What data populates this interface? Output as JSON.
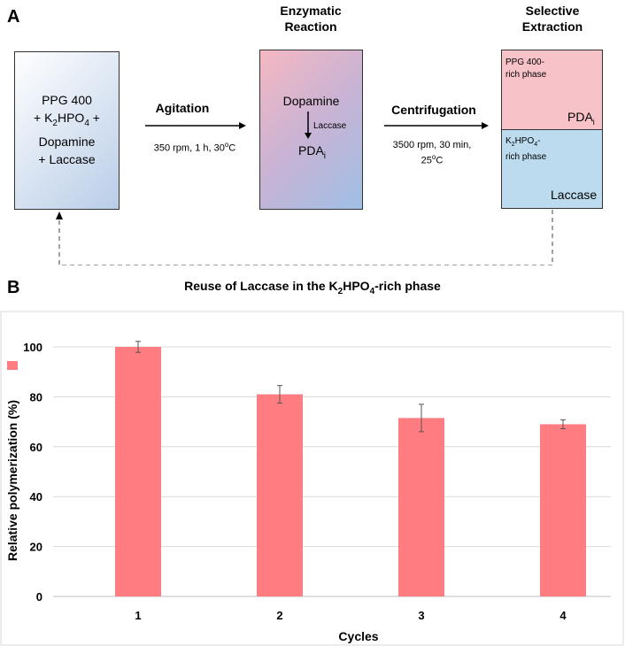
{
  "panel_a": {
    "label": "A",
    "box1": {
      "line1": "PPG 400",
      "line2_pre": "+ K",
      "line2_sub1": "2",
      "line2_mid": "HPO",
      "line2_sub2": "4",
      "line2_post": " +",
      "line3": "Dopamine",
      "line4": "+ Laccase"
    },
    "arrow1": {
      "label": "Agitation",
      "cond_pre": "350 rpm,  1 h, 30",
      "cond_sup": "o",
      "cond_post": "C"
    },
    "step2": {
      "header_line1": "Enzymatic",
      "header_line2": "Reaction",
      "substrate": "Dopamine",
      "enzyme": "Laccase",
      "product": "PDA",
      "product_sub": "i"
    },
    "arrow2": {
      "label": "Centrifugation",
      "cond_line1": "3500 rpm, 30 min,",
      "cond_line2_pre": "25",
      "cond_line2_sup": "o",
      "cond_line2_post": "C"
    },
    "step3": {
      "header_line1": "Selective",
      "header_line2": "Extraction",
      "top_phase_line1": "PPG 400-",
      "top_phase_line2": "rich phase",
      "top_product": "PDA",
      "top_product_sub": "i",
      "bottom_phase_pre": "K",
      "bottom_phase_sub1": "2",
      "bottom_phase_mid": "HPO",
      "bottom_phase_sub2": "4",
      "bottom_phase_post": "-",
      "bottom_phase_line2": "rich phase",
      "bottom_enzyme": "Laccase"
    },
    "reuse": {
      "pre": "Reuse of Laccase in the K",
      "sub1": "2",
      "mid": "HPO",
      "sub2": "4",
      "post": "-rich phase"
    }
  },
  "panel_b": {
    "label": "B"
  },
  "chart_data": {
    "type": "bar",
    "categories": [
      "1",
      "2",
      "3",
      "4"
    ],
    "values": [
      100,
      81,
      71.5,
      69
    ],
    "errors": [
      2.2,
      3.5,
      5.5,
      1.8
    ],
    "title": "",
    "xlabel": "Cycles",
    "ylabel": "Relative polymerization  (%)",
    "ylim": [
      0,
      100
    ],
    "yticks": [
      0,
      20,
      40,
      60,
      80,
      100
    ],
    "bar_color": "#ff7c80",
    "legend_swatch": true
  }
}
